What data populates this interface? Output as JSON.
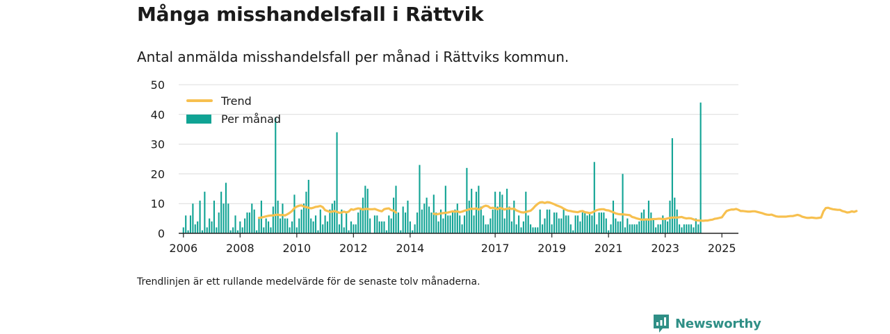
{
  "title": "Många misshandelsfall i Rättvik",
  "subtitle": "Antal anmälda misshandelsfall per månad i Rättviks kommun.",
  "footnote": "Trendlinjen är ett rullande medelvärde för de senaste tolv månaderna.",
  "brand": "Newsworthy",
  "colors": {
    "bars": "#10a394",
    "trend": "#f7c04f",
    "grid": "#dcdcdc",
    "axis": "#222222",
    "brand": "#2f8f86"
  },
  "chart_data": {
    "type": "bar",
    "grid": true,
    "legend_position": "top-left",
    "ylim": [
      0,
      50
    ],
    "yticks": [
      0,
      10,
      20,
      30,
      40,
      50
    ],
    "xlim": [
      "2005-11",
      "2025-08"
    ],
    "xticks": [
      "2006",
      "2008",
      "2010",
      "2012",
      "2014",
      "2017",
      "2019",
      "2021",
      "2023",
      "2025"
    ],
    "series": [
      {
        "name": "Per månad",
        "type": "bar",
        "start": "2006-01",
        "values": [
          2,
          6,
          1,
          6,
          10,
          3,
          4,
          11,
          1,
          14,
          2,
          5,
          4,
          11,
          2,
          7,
          14,
          10,
          17,
          10,
          1,
          2,
          6,
          1,
          4,
          2,
          5,
          7,
          7,
          10,
          8,
          1,
          5,
          11,
          2,
          5,
          4,
          2,
          9,
          39,
          11,
          5,
          10,
          5,
          5,
          2,
          4,
          13,
          2,
          5,
          8,
          10,
          14,
          18,
          5,
          4,
          6,
          1,
          8,
          3,
          6,
          4,
          8,
          10,
          11,
          34,
          3,
          8,
          2,
          7,
          1,
          4,
          3,
          3,
          7,
          8,
          12,
          16,
          15,
          5,
          0,
          6,
          6,
          4,
          4,
          4,
          1,
          6,
          5,
          12,
          16,
          7,
          1,
          9,
          7,
          11,
          4,
          1,
          3,
          7,
          23,
          8,
          10,
          12,
          9,
          7,
          13,
          7,
          4,
          8,
          5,
          16,
          6,
          6,
          7,
          8,
          10,
          6,
          3,
          6,
          22,
          11,
          15,
          6,
          14,
          16,
          9,
          6,
          3,
          3,
          5,
          8,
          14,
          9,
          14,
          13,
          5,
          15,
          9,
          4,
          11,
          3,
          6,
          2,
          4,
          14,
          6,
          3,
          2,
          2,
          2,
          8,
          3,
          5,
          8,
          8,
          3,
          7,
          7,
          5,
          5,
          8,
          6,
          6,
          3,
          1,
          6,
          6,
          4,
          7,
          7,
          6,
          7,
          6,
          24,
          3,
          7,
          7,
          7,
          5,
          1,
          3,
          11,
          5,
          4,
          4,
          20,
          2,
          5,
          3,
          3,
          3,
          3,
          4,
          7,
          8,
          5,
          11,
          7,
          5,
          2,
          3,
          3,
          6,
          5,
          4,
          11,
          32,
          12,
          8,
          3,
          2,
          3,
          3,
          3,
          3,
          2,
          5,
          3,
          44
        ]
      },
      {
        "name": "Trend",
        "type": "line",
        "start": "2008-09",
        "values": [
          5.2,
          5.3,
          5.5,
          5.7,
          5.9,
          6.0,
          6.0,
          6.2,
          6.3,
          6.1,
          6.2,
          6.0,
          6.4,
          6.9,
          7.5,
          8.5,
          9.0,
          9.3,
          9.4,
          9.0,
          8.8,
          8.6,
          8.4,
          8.6,
          8.9,
          9.0,
          9.2,
          8.8,
          7.8,
          7.5,
          7.2,
          7.3,
          7.5,
          7.2,
          6.9,
          7.0,
          7.3,
          7.0,
          7.3,
          8.1,
          7.9,
          8.2,
          8.4,
          8.3,
          8.0,
          8.2,
          8.2,
          8.1,
          8.1,
          8.2,
          7.9,
          7.6,
          7.4,
          8.1,
          8.3,
          8.4,
          7.8,
          7.6,
          7.0,
          null,
          null,
          null,
          null,
          null,
          null,
          null,
          null,
          null,
          null,
          null,
          null,
          null,
          null,
          null,
          6.6,
          6.4,
          6.5,
          6.7,
          6.8,
          6.9,
          7.0,
          7.2,
          7.4,
          7.3,
          7.4,
          7.1,
          7.3,
          7.6,
          7.8,
          8.1,
          8.3,
          8.2,
          8.4,
          8.0,
          8.3,
          9.0,
          9.3,
          9.1,
          8.5,
          8.6,
          8.4,
          8.1,
          8.5,
          8.3,
          8.0,
          8.3,
          8.4,
          8.2,
          8.3,
          7.7,
          7.4,
          7.1,
          7.0,
          7.2,
          7.4,
          7.6,
          8.3,
          9.2,
          9.9,
          10.4,
          10.5,
          10.2,
          10.5,
          10.4,
          10.1,
          9.8,
          9.4,
          9.1,
          8.8,
          8.3,
          7.9,
          7.6,
          7.5,
          7.3,
          7.2,
          7.1,
          7.4,
          7.5,
          7.1,
          7.0,
          6.8,
          7.0,
          7.4,
          7.8,
          8.0,
          8.1,
          8.1,
          7.8,
          7.7,
          7.4,
          7.1,
          6.7,
          6.5,
          6.4,
          6.4,
          6.3,
          6.2,
          6.1,
          5.5,
          5.3,
          5.0,
          4.8,
          4.6,
          4.6,
          4.7,
          4.6,
          4.7,
          4.8,
          4.8,
          4.9,
          4.9,
          4.8,
          4.8,
          5.0,
          5.2,
          5.3,
          5.3,
          5.3,
          5.4,
          5.5,
          5.2,
          5.0,
          5.1,
          5.0,
          4.7,
          4.4,
          4.3,
          4.3,
          4.2,
          4.3,
          4.3,
          4.5,
          4.6,
          4.9,
          5.0,
          5.2,
          5.4,
          6.5,
          7.5,
          7.8,
          8.0,
          8.0,
          8.2,
          7.9,
          7.5,
          7.5,
          7.4,
          7.3,
          7.3,
          7.4,
          7.4,
          7.2,
          7.0,
          6.8,
          6.5,
          6.3,
          6.2,
          6.3,
          6.0,
          5.7,
          5.6,
          5.6,
          5.6,
          5.6,
          5.7,
          5.8,
          5.8,
          6.0,
          6.2,
          6.0,
          5.6,
          5.4,
          5.2,
          5.2,
          5.3,
          5.2,
          5.1,
          5.2,
          5.3,
          7.4,
          8.5,
          8.6,
          8.3,
          8.1,
          8.0,
          7.9,
          7.9,
          7.5,
          7.3,
          7.0,
          7.1,
          7.4,
          7.2,
          7.5
        ]
      }
    ]
  }
}
